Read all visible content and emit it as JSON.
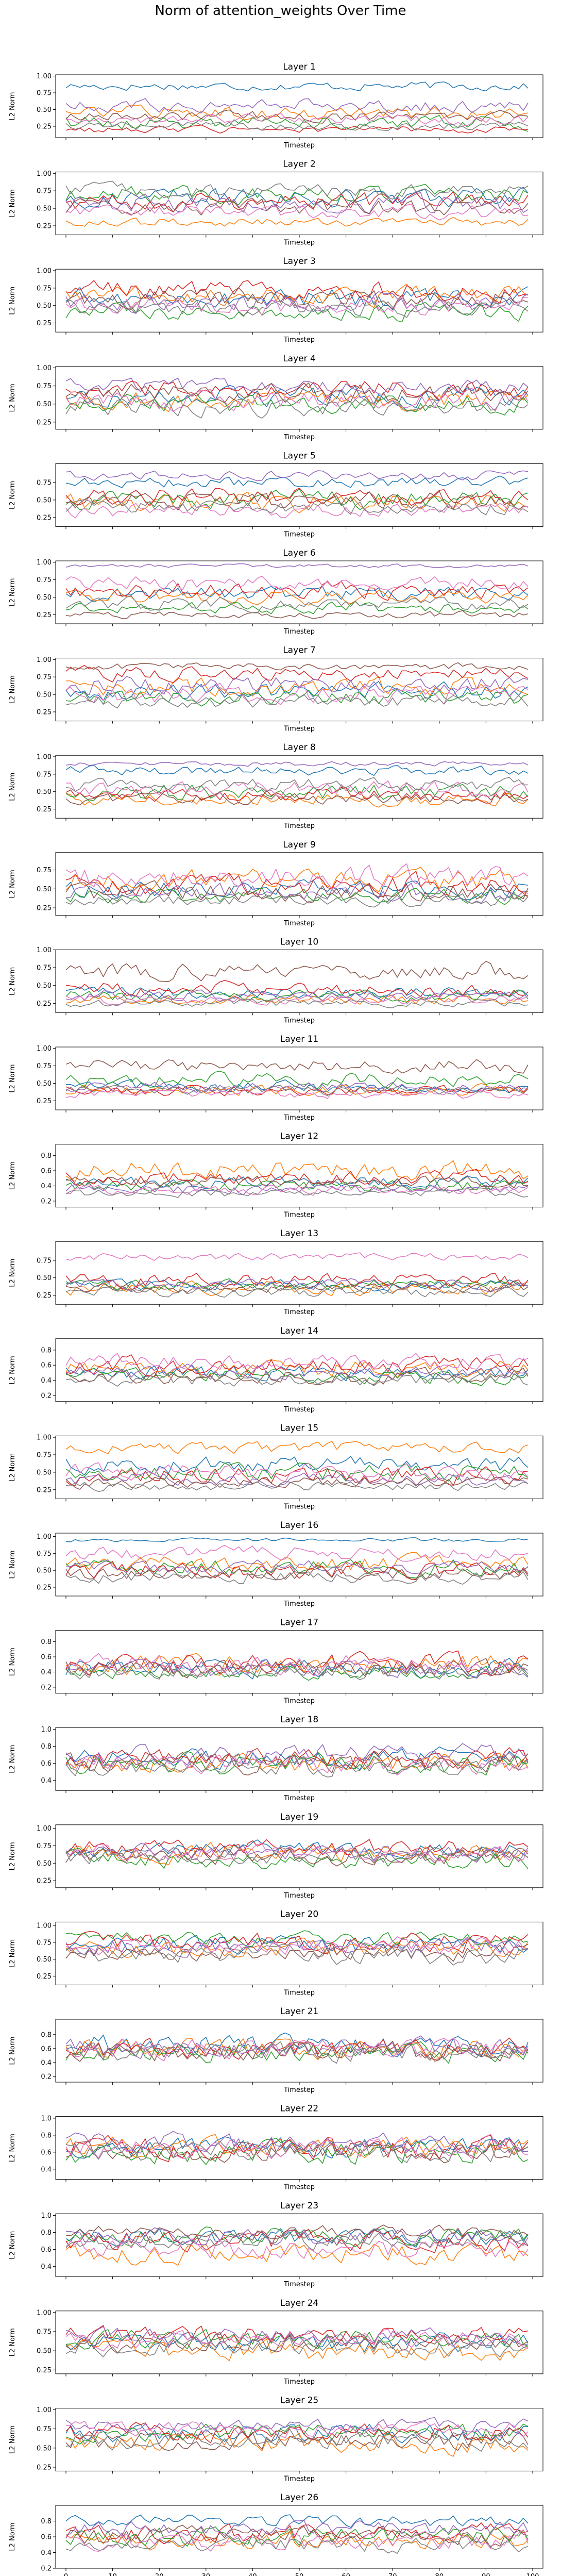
{
  "figure_title": "Norm of attention_weights Over Time",
  "colors": [
    "#1f77b4",
    "#ff7f0e",
    "#2ca02c",
    "#d62728",
    "#9467bd",
    "#8c564b",
    "#e377c2",
    "#7f7f7f"
  ],
  "chart_data": {
    "type": "line",
    "n_series": 8,
    "x_range": [
      0,
      99
    ],
    "x_ticks": [
      0,
      10,
      20,
      30,
      40,
      50,
      60,
      70,
      80,
      90,
      100
    ],
    "xlabel": "Timestep",
    "ylabel": "L2 Norm",
    "grid": false,
    "legend": "none",
    "panels": [
      {
        "title": "Layer 1",
        "ylim": [
          0.08,
          1.02
        ],
        "yticks": [
          0.25,
          0.5,
          0.75,
          1.0
        ],
        "ytick_labels": [
          "0.25",
          "0.50",
          "0.75",
          "1.00"
        ],
        "series_means": [
          0.85,
          0.45,
          0.3,
          0.2,
          0.55,
          0.4,
          0.35,
          0.25
        ],
        "series_amps": [
          0.1,
          0.15,
          0.15,
          0.08,
          0.15,
          0.12,
          0.12,
          0.1
        ]
      },
      {
        "title": "Layer 2",
        "ylim": [
          0.12,
          1.02
        ],
        "yticks": [
          0.25,
          0.5,
          0.75,
          1.0
        ],
        "ytick_labels": [
          "0.25",
          "0.50",
          "0.75",
          "1.00"
        ],
        "series_means": [
          0.65,
          0.3,
          0.7,
          0.6,
          0.55,
          0.5,
          0.45,
          0.75
        ],
        "series_amps": [
          0.2,
          0.1,
          0.18,
          0.2,
          0.2,
          0.18,
          0.15,
          0.15
        ]
      },
      {
        "title": "Layer 3",
        "ylim": [
          0.12,
          1.02
        ],
        "yticks": [
          0.25,
          0.5,
          0.75,
          1.0
        ],
        "ytick_labels": [
          "0.25",
          "0.50",
          "0.75",
          "1.00"
        ],
        "series_means": [
          0.6,
          0.65,
          0.4,
          0.7,
          0.55,
          0.6,
          0.5,
          0.45
        ],
        "series_amps": [
          0.22,
          0.22,
          0.18,
          0.22,
          0.2,
          0.2,
          0.2,
          0.18
        ]
      },
      {
        "title": "Layer 4",
        "ylim": [
          0.15,
          1.02
        ],
        "yticks": [
          0.25,
          0.5,
          0.75,
          1.0
        ],
        "ytick_labels": [
          "0.25",
          "0.50",
          "0.75",
          "1.00"
        ],
        "series_means": [
          0.6,
          0.55,
          0.5,
          0.7,
          0.75,
          0.65,
          0.55,
          0.45
        ],
        "series_amps": [
          0.2,
          0.2,
          0.18,
          0.2,
          0.15,
          0.2,
          0.2,
          0.18
        ]
      },
      {
        "title": "Layer 5",
        "ylim": [
          0.12,
          1.02
        ],
        "yticks": [
          0.25,
          0.5,
          0.75
        ],
        "ytick_labels": [
          "0.25",
          "0.50",
          "0.75"
        ],
        "series_means": [
          0.75,
          0.45,
          0.5,
          0.55,
          0.85,
          0.5,
          0.35,
          0.4
        ],
        "series_amps": [
          0.12,
          0.2,
          0.2,
          0.2,
          0.1,
          0.2,
          0.15,
          0.15
        ]
      },
      {
        "title": "Layer 6",
        "ylim": [
          0.12,
          1.02
        ],
        "yticks": [
          0.25,
          0.5,
          0.75,
          1.0
        ],
        "ytick_labels": [
          "0.25",
          "0.50",
          "0.75",
          "1.00"
        ],
        "series_means": [
          0.55,
          0.5,
          0.35,
          0.6,
          0.95,
          0.25,
          0.7,
          0.4
        ],
        "series_amps": [
          0.15,
          0.15,
          0.12,
          0.18,
          0.04,
          0.08,
          0.15,
          0.15
        ]
      },
      {
        "title": "Layer 7",
        "ylim": [
          0.12,
          1.02
        ],
        "yticks": [
          0.25,
          0.5,
          0.75,
          1.0
        ],
        "ytick_labels": [
          "0.25",
          "0.50",
          "0.75",
          "1.00"
        ],
        "series_means": [
          0.55,
          0.6,
          0.45,
          0.8,
          0.65,
          0.9,
          0.5,
          0.4
        ],
        "series_amps": [
          0.2,
          0.2,
          0.18,
          0.15,
          0.2,
          0.08,
          0.2,
          0.15
        ]
      },
      {
        "title": "Layer 8",
        "ylim": [
          0.12,
          1.02
        ],
        "yticks": [
          0.25,
          0.5,
          0.75,
          1.0
        ],
        "ytick_labels": [
          "0.25",
          "0.50",
          "0.75",
          "1.00"
        ],
        "series_means": [
          0.8,
          0.4,
          0.5,
          0.45,
          0.9,
          0.4,
          0.55,
          0.6
        ],
        "series_amps": [
          0.1,
          0.15,
          0.18,
          0.15,
          0.05,
          0.12,
          0.18,
          0.15
        ]
      },
      {
        "title": "Layer 9",
        "ylim": [
          0.15,
          0.98
        ],
        "yticks": [
          0.25,
          0.5,
          0.75
        ],
        "ytick_labels": [
          "0.25",
          "0.50",
          "0.75"
        ],
        "series_means": [
          0.5,
          0.6,
          0.4,
          0.55,
          0.45,
          0.45,
          0.65,
          0.35
        ],
        "series_amps": [
          0.18,
          0.22,
          0.15,
          0.22,
          0.18,
          0.18,
          0.22,
          0.12
        ]
      },
      {
        "title": "Layer 10",
        "ylim": [
          0.12,
          1.0
        ],
        "yticks": [
          0.25,
          0.5,
          0.75,
          1.0
        ],
        "ytick_labels": [
          "0.25",
          "0.50",
          "0.75",
          "1.00"
        ],
        "series_means": [
          0.4,
          0.3,
          0.35,
          0.45,
          0.35,
          0.7,
          0.3,
          0.25
        ],
        "series_amps": [
          0.12,
          0.1,
          0.12,
          0.15,
          0.12,
          0.18,
          0.1,
          0.08
        ]
      },
      {
        "title": "Layer 11",
        "ylim": [
          0.12,
          1.02
        ],
        "yticks": [
          0.25,
          0.5,
          0.75,
          1.0
        ],
        "ytick_labels": [
          "0.25",
          "0.50",
          "0.75",
          "1.00"
        ],
        "series_means": [
          0.45,
          0.4,
          0.55,
          0.4,
          0.45,
          0.75,
          0.35,
          0.4
        ],
        "series_amps": [
          0.12,
          0.12,
          0.15,
          0.12,
          0.12,
          0.15,
          0.1,
          0.1
        ]
      },
      {
        "title": "Layer 12",
        "ylim": [
          0.12,
          0.95
        ],
        "yticks": [
          0.2,
          0.4,
          0.6,
          0.8
        ],
        "ytick_labels": [
          "0.2",
          "0.4",
          "0.6",
          "0.8"
        ],
        "series_means": [
          0.45,
          0.6,
          0.4,
          0.5,
          0.35,
          0.45,
          0.35,
          0.3
        ],
        "series_amps": [
          0.12,
          0.2,
          0.12,
          0.15,
          0.1,
          0.12,
          0.1,
          0.08
        ]
      },
      {
        "title": "Layer 13",
        "ylim": [
          0.12,
          1.02
        ],
        "yticks": [
          0.25,
          0.5,
          0.75
        ],
        "ytick_labels": [
          "0.25",
          "0.50",
          "0.75"
        ],
        "series_means": [
          0.4,
          0.35,
          0.4,
          0.45,
          0.4,
          0.35,
          0.8,
          0.3
        ],
        "series_amps": [
          0.12,
          0.15,
          0.12,
          0.15,
          0.12,
          0.1,
          0.08,
          0.1
        ]
      },
      {
        "title": "Layer 14",
        "ylim": [
          0.12,
          0.95
        ],
        "yticks": [
          0.2,
          0.4,
          0.6,
          0.8
        ],
        "ytick_labels": [
          "0.2",
          "0.4",
          "0.6",
          "0.8"
        ],
        "series_means": [
          0.5,
          0.55,
          0.45,
          0.6,
          0.5,
          0.45,
          0.65,
          0.4
        ],
        "series_amps": [
          0.15,
          0.18,
          0.15,
          0.18,
          0.15,
          0.15,
          0.15,
          0.12
        ]
      },
      {
        "title": "Layer 15",
        "ylim": [
          0.12,
          1.02
        ],
        "yticks": [
          0.25,
          0.5,
          0.75,
          1.0
        ],
        "ytick_labels": [
          "0.25",
          "0.50",
          "0.75",
          "1.00"
        ],
        "series_means": [
          0.6,
          0.85,
          0.5,
          0.45,
          0.4,
          0.35,
          0.5,
          0.3
        ],
        "series_amps": [
          0.18,
          0.12,
          0.2,
          0.18,
          0.15,
          0.12,
          0.18,
          0.1
        ]
      },
      {
        "title": "Layer 16",
        "ylim": [
          0.12,
          1.05
        ],
        "yticks": [
          0.25,
          0.5,
          0.75,
          1.0
        ],
        "ytick_labels": [
          "0.25",
          "0.50",
          "0.75",
          "1.00"
        ],
        "series_means": [
          0.95,
          0.6,
          0.55,
          0.5,
          0.55,
          0.45,
          0.75,
          0.4
        ],
        "series_amps": [
          0.04,
          0.18,
          0.18,
          0.18,
          0.15,
          0.15,
          0.15,
          0.15
        ]
      },
      {
        "title": "Layer 17",
        "ylim": [
          0.12,
          0.95
        ],
        "yticks": [
          0.2,
          0.4,
          0.6,
          0.8
        ],
        "ytick_labels": [
          "0.2",
          "0.4",
          "0.6",
          "0.8"
        ],
        "series_means": [
          0.45,
          0.5,
          0.4,
          0.5,
          0.45,
          0.45,
          0.5,
          0.4
        ],
        "series_amps": [
          0.18,
          0.2,
          0.15,
          0.2,
          0.18,
          0.18,
          0.2,
          0.15
        ]
      },
      {
        "title": "Layer 18",
        "ylim": [
          0.28,
          1.02
        ],
        "yticks": [
          0.4,
          0.6,
          0.8,
          1.0
        ],
        "ytick_labels": [
          "0.4",
          "0.6",
          "0.8",
          "1.0"
        ],
        "series_means": [
          0.65,
          0.6,
          0.6,
          0.65,
          0.7,
          0.6,
          0.6,
          0.55
        ],
        "series_amps": [
          0.18,
          0.18,
          0.18,
          0.18,
          0.18,
          0.18,
          0.18,
          0.15
        ]
      },
      {
        "title": "Layer 19",
        "ylim": [
          0.15,
          1.05
        ],
        "yticks": [
          0.25,
          0.5,
          0.75,
          1.0
        ],
        "ytick_labels": [
          "0.25",
          "0.50",
          "0.75",
          "1.00"
        ],
        "series_means": [
          0.7,
          0.65,
          0.55,
          0.7,
          0.65,
          0.6,
          0.65,
          0.6
        ],
        "series_amps": [
          0.18,
          0.2,
          0.2,
          0.2,
          0.18,
          0.18,
          0.18,
          0.18
        ]
      },
      {
        "title": "Layer 20",
        "ylim": [
          0.12,
          1.05
        ],
        "yticks": [
          0.25,
          0.5,
          0.75,
          1.0
        ],
        "ytick_labels": [
          "0.25",
          "0.50",
          "0.75",
          "1.00"
        ],
        "series_means": [
          0.7,
          0.65,
          0.8,
          0.75,
          0.7,
          0.6,
          0.7,
          0.55
        ],
        "series_amps": [
          0.2,
          0.2,
          0.15,
          0.2,
          0.2,
          0.2,
          0.2,
          0.2
        ]
      },
      {
        "title": "Layer 21",
        "ylim": [
          0.12,
          1.02
        ],
        "yticks": [
          0.2,
          0.4,
          0.6,
          0.8
        ],
        "ytick_labels": [
          "0.2",
          "0.4",
          "0.6",
          "0.8"
        ],
        "series_means": [
          0.65,
          0.6,
          0.55,
          0.6,
          0.6,
          0.55,
          0.6,
          0.55
        ],
        "series_amps": [
          0.22,
          0.22,
          0.22,
          0.22,
          0.22,
          0.22,
          0.22,
          0.2
        ]
      },
      {
        "title": "Layer 22",
        "ylim": [
          0.28,
          1.02
        ],
        "yticks": [
          0.4,
          0.6,
          0.8,
          1.0
        ],
        "ytick_labels": [
          "0.4",
          "0.6",
          "0.8",
          "1.0"
        ],
        "series_means": [
          0.65,
          0.65,
          0.6,
          0.65,
          0.7,
          0.6,
          0.65,
          0.6
        ],
        "series_amps": [
          0.18,
          0.18,
          0.2,
          0.2,
          0.18,
          0.18,
          0.18,
          0.18
        ]
      },
      {
        "title": "Layer 23",
        "ylim": [
          0.28,
          1.02
        ],
        "yticks": [
          0.4,
          0.6,
          0.8,
          1.0
        ],
        "ytick_labels": [
          "0.4",
          "0.6",
          "0.8",
          "1.0"
        ],
        "series_means": [
          0.75,
          0.55,
          0.75,
          0.7,
          0.75,
          0.8,
          0.6,
          0.7
        ],
        "series_amps": [
          0.15,
          0.18,
          0.15,
          0.18,
          0.15,
          0.12,
          0.18,
          0.15
        ]
      },
      {
        "title": "Layer 24",
        "ylim": [
          0.2,
          1.02
        ],
        "yticks": [
          0.25,
          0.5,
          0.75,
          1.0
        ],
        "ytick_labels": [
          "0.25",
          "0.50",
          "0.75",
          "1.00"
        ],
        "series_means": [
          0.6,
          0.5,
          0.65,
          0.7,
          0.7,
          0.6,
          0.65,
          0.55
        ],
        "series_amps": [
          0.18,
          0.2,
          0.18,
          0.18,
          0.15,
          0.18,
          0.18,
          0.18
        ]
      },
      {
        "title": "Layer 25",
        "ylim": [
          0.2,
          1.02
        ],
        "yticks": [
          0.25,
          0.5,
          0.75,
          1.0
        ],
        "ytick_labels": [
          "0.25",
          "0.50",
          "0.75",
          "1.00"
        ],
        "series_means": [
          0.7,
          0.55,
          0.7,
          0.7,
          0.8,
          0.6,
          0.75,
          0.6
        ],
        "series_amps": [
          0.18,
          0.2,
          0.18,
          0.18,
          0.12,
          0.18,
          0.15,
          0.18
        ]
      },
      {
        "title": "Layer 26",
        "ylim": [
          0.2,
          1.0
        ],
        "yticks": [
          0.2,
          0.4,
          0.6,
          0.8
        ],
        "ytick_labels": [
          "0.2",
          "0.4",
          "0.6",
          "0.8"
        ],
        "series_means": [
          0.8,
          0.55,
          0.6,
          0.65,
          0.7,
          0.6,
          0.55,
          0.5
        ],
        "series_amps": [
          0.12,
          0.18,
          0.18,
          0.18,
          0.15,
          0.18,
          0.18,
          0.15
        ]
      }
    ]
  }
}
